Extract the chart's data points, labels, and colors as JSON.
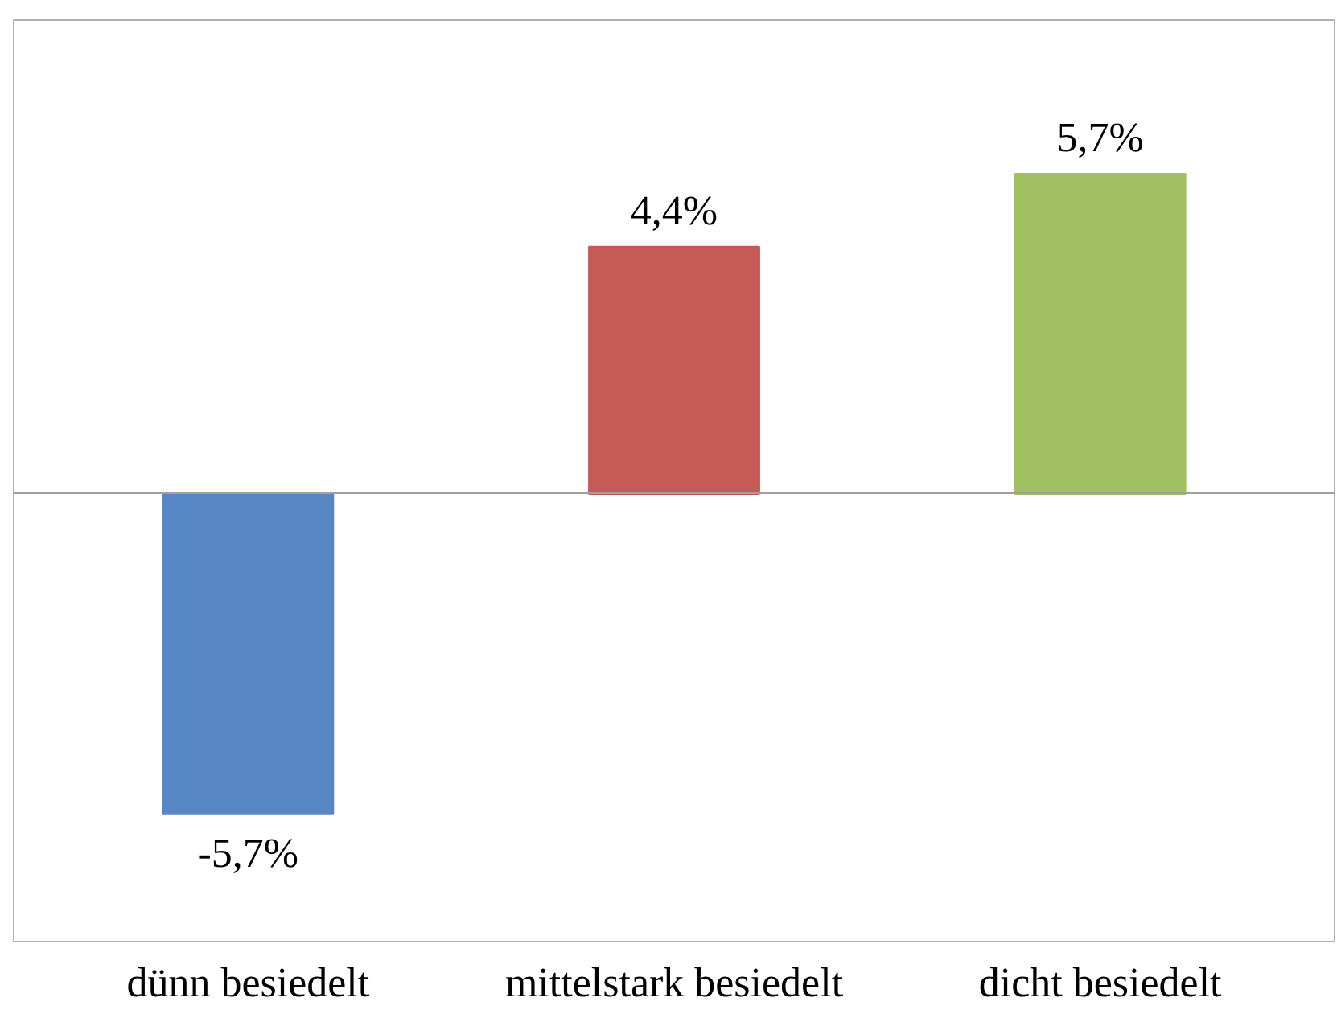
{
  "chart_data": {
    "type": "bar",
    "categories": [
      "dünn besiedelt",
      "mittelstark besiedelt",
      "dicht besiedelt"
    ],
    "values": [
      -5.7,
      4.4,
      5.7
    ],
    "colors": [
      "#5787c5",
      "#c65a57",
      "#a0c062"
    ],
    "value_labels": [
      "-5,7%",
      "4,4%",
      "5,7%"
    ]
  }
}
